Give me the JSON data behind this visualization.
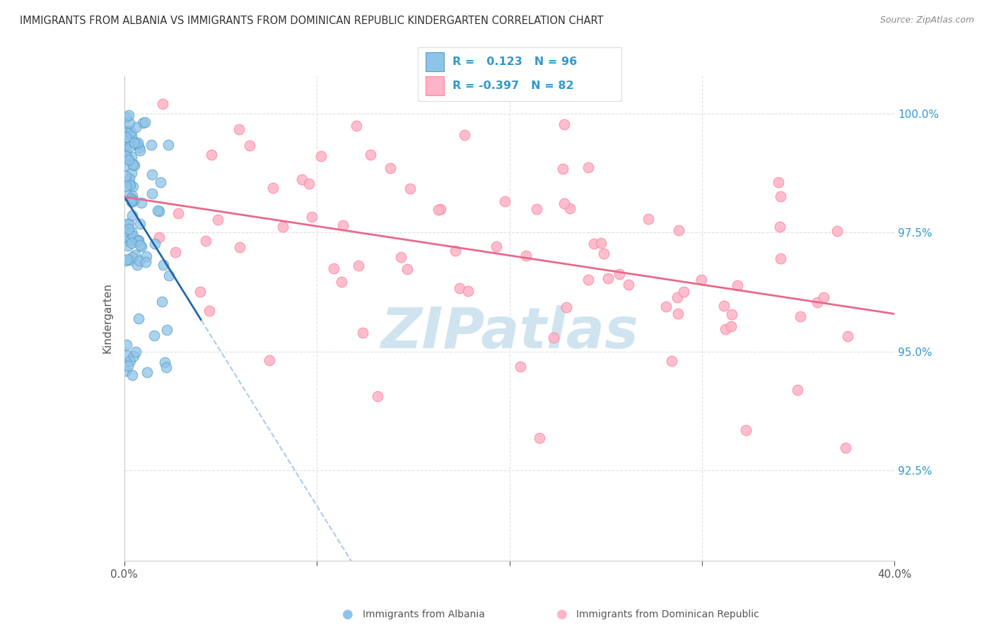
{
  "title": "IMMIGRANTS FROM ALBANIA VS IMMIGRANTS FROM DOMINICAN REPUBLIC KINDERGARTEN CORRELATION CHART",
  "source": "Source: ZipAtlas.com",
  "ylabel": "Kindergarten",
  "xlim": [
    0.0,
    0.4
  ],
  "ylim": [
    0.906,
    1.008
  ],
  "ytick_values": [
    0.925,
    0.95,
    0.975,
    1.0
  ],
  "ytick_labels": [
    "92.5%",
    "95.0%",
    "97.5%",
    "100.0%"
  ],
  "xtick_values": [
    0.0,
    0.1,
    0.2,
    0.3,
    0.4
  ],
  "xtick_labels_show": [
    "0.0%",
    "",
    "",
    "",
    "40.0%"
  ],
  "legend_text_1": "R =   0.123   N = 96",
  "legend_text_2": "R = -0.397   N = 82",
  "albania_color": "#8ec4e8",
  "albania_edge_color": "#5a9fc8",
  "dr_color": "#ffb3c6",
  "dr_edge_color": "#ff85a1",
  "albania_line_color": "#2166ac",
  "albania_dash_color": "#aaccee",
  "dr_line_color": "#e8698a",
  "grid_color": "#e0e0e0",
  "spine_color": "#cccccc",
  "right_tick_color": "#3399cc",
  "watermark_color": "#d0e4f0",
  "watermark_text": "ZIPatlas",
  "legend_border_color": "#dddddd",
  "title_color": "#333333",
  "source_color": "#888888",
  "ylabel_color": "#555555",
  "bottom_label_color": "#555555"
}
